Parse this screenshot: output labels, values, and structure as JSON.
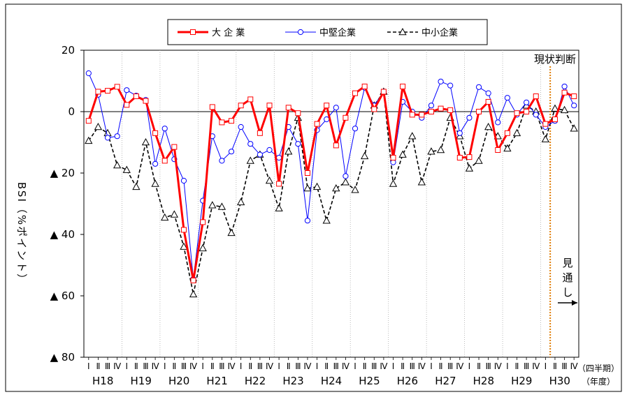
{
  "chart_data": {
    "type": "line",
    "ylabel": "BSI（%ポイント）",
    "xlabel_quarter": "（四半期）",
    "xlabel_year": "（年度）",
    "ylim": [
      -80,
      20
    ],
    "ytick_values": [
      20,
      0,
      -20,
      -40,
      -60,
      -80
    ],
    "ytick_labels": [
      "20",
      "0",
      "▲ 20",
      "▲ 40",
      "▲ 60",
      "▲ 80"
    ],
    "year_labels": [
      "H18",
      "H19",
      "H20",
      "H21",
      "H22",
      "H23",
      "H24",
      "H25",
      "H26",
      "H27",
      "H28",
      "H29",
      "H30"
    ],
    "quarter_labels": [
      "Ⅰ",
      "Ⅱ",
      "Ⅲ",
      "Ⅳ"
    ],
    "quarters_total": 52,
    "current_judgement_label": "現状判断",
    "outlook_label_chars": [
      "見",
      "通",
      "し"
    ],
    "legend_position": "top-center",
    "series": [
      {
        "name": "大 企 業",
        "color": "#ff0000",
        "marker": "square",
        "dash": "solid",
        "values": [
          -3,
          6.5,
          6.8,
          8.1,
          2.2,
          5,
          3.5,
          -7,
          -16,
          -11.5,
          -38.5,
          -55,
          -36,
          1.5,
          -3.5,
          -3,
          2,
          4,
          -7,
          2,
          -23.5,
          1.3,
          -0.5,
          -20,
          -4,
          2,
          -11,
          -2,
          6,
          8.2,
          0.8,
          6.5,
          -15,
          8.2,
          -1,
          -1,
          0,
          1,
          0.5,
          -15,
          -14.8,
          0,
          3.2,
          -12.5,
          -7,
          -0.5,
          0,
          5,
          -4,
          -2.5,
          6.2,
          5
        ]
      },
      {
        "name": "中堅企業",
        "color": "#0000ff",
        "marker": "circle",
        "dash": "solid",
        "values": [
          12.5,
          5.5,
          -8.5,
          -8,
          7,
          5.2,
          3.8,
          -17,
          -5.5,
          -15.5,
          -22.5,
          -54.5,
          -29,
          -8,
          -16,
          -13,
          -5,
          -10.5,
          -14,
          -12.5,
          -15,
          -5,
          -10.5,
          -35.5,
          -6,
          -2.5,
          1.3,
          -21,
          -5.5,
          7.8,
          2,
          6.5,
          -16.5,
          3.2,
          0,
          -2,
          2,
          9.8,
          8.5,
          -7,
          -2,
          8,
          6,
          -3.5,
          4.5,
          -1,
          3,
          -1,
          -5,
          -3,
          8.2,
          2
        ]
      },
      {
        "name": "中小企業",
        "color": "#000000",
        "marker": "triangle",
        "dash": "dashed",
        "values": [
          -9.5,
          -5,
          -7,
          -17.5,
          -19,
          -24.5,
          -10,
          -23.5,
          -34.5,
          -33.5,
          -44,
          -59.5,
          -44.5,
          -30.5,
          -31,
          -39.5,
          -29.5,
          -16,
          -14,
          -22.5,
          -31.5,
          -13,
          -2,
          -25,
          -24.5,
          -35.5,
          -25,
          -23,
          -25.5,
          -14.5,
          2,
          6.5,
          -23.5,
          -14,
          -8,
          -23,
          -13,
          -12.5,
          -2,
          -8,
          -18.5,
          -16,
          -5,
          -8,
          -12,
          -7,
          2,
          0,
          -9,
          1,
          0.5,
          -5.5
        ]
      }
    ]
  }
}
